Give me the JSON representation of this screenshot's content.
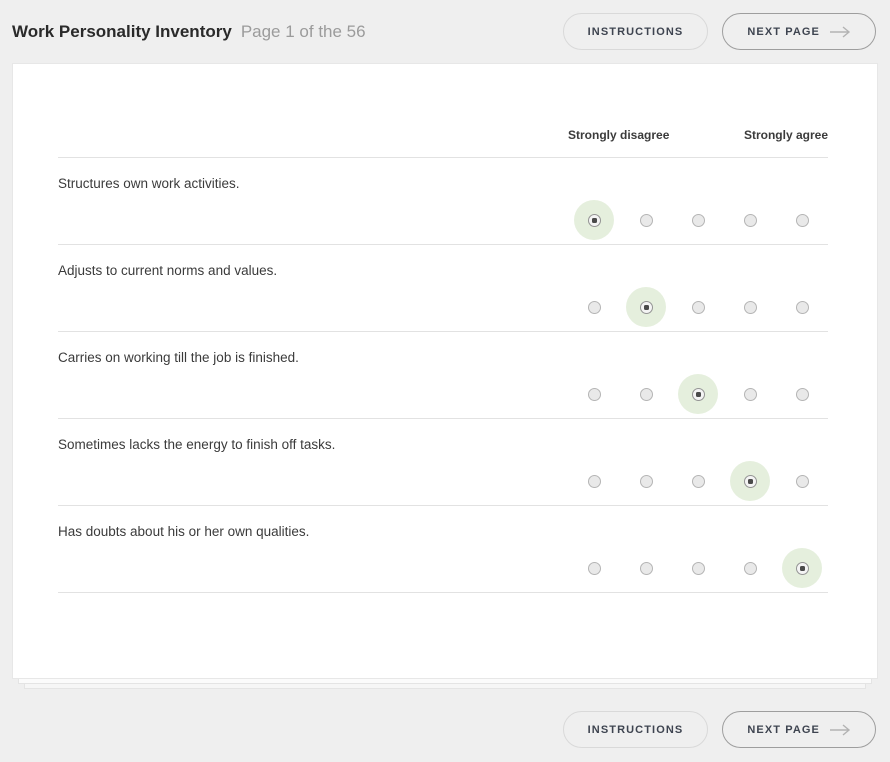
{
  "header": {
    "title": "Work Personality Inventory",
    "page_indicator": "Page 1 of the 56"
  },
  "buttons": {
    "instructions": "INSTRUCTIONS",
    "next_page": "NEXT PAGE"
  },
  "survey": {
    "scale_left_label": "Strongly disagree",
    "scale_right_label": "Strongly agree",
    "options_count": 5,
    "questions": [
      {
        "text": "Structures own work activities.",
        "selected": 0
      },
      {
        "text": "Adjusts to current norms and values.",
        "selected": 1
      },
      {
        "text": "Carries on working till the job is finished.",
        "selected": 2
      },
      {
        "text": "Sometimes lacks the energy to finish off tasks.",
        "selected": 3
      },
      {
        "text": "Has doubts about his or her own qualities.",
        "selected": 4
      }
    ]
  },
  "colors": {
    "page_background": "#efefef",
    "card_background": "#ffffff",
    "selected_halo_green": "#e5efdd",
    "radio_dot": "#4a4a4a",
    "divider_line": "#e2e2e2",
    "button_text": "#3e4450",
    "muted_text": "#9b9b9b"
  },
  "icons": {
    "next_page_arrow": "arrow-right"
  }
}
